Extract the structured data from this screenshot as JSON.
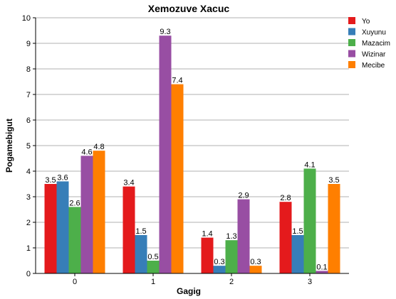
{
  "chart_data": {
    "type": "bar",
    "title": "Xemozuve Xacuc",
    "xlabel": "Gagig",
    "ylabel": "Pogamebigut",
    "categories": [
      "0",
      "1",
      "2",
      "3"
    ],
    "ylim": [
      0,
      10
    ],
    "yticks": [
      0,
      1,
      2,
      3,
      4,
      5,
      6,
      7,
      8,
      9,
      10
    ],
    "grid": true,
    "legend_position": "top-right",
    "series": [
      {
        "name": "Yo",
        "color": "#e41a1c",
        "values": [
          3.5,
          3.4,
          1.4,
          2.8
        ]
      },
      {
        "name": "Xuyunu",
        "color": "#377eb8",
        "values": [
          3.6,
          1.5,
          0.3,
          1.5
        ]
      },
      {
        "name": "Mazacim",
        "color": "#4daf4a",
        "values": [
          2.6,
          0.5,
          1.3,
          4.1
        ]
      },
      {
        "name": "Wizinar",
        "color": "#984ea3",
        "values": [
          4.6,
          9.3,
          2.9,
          0.1
        ]
      },
      {
        "name": "Mecibe",
        "color": "#ff7f00",
        "values": [
          4.8,
          7.4,
          0.3,
          3.5
        ]
      }
    ]
  }
}
